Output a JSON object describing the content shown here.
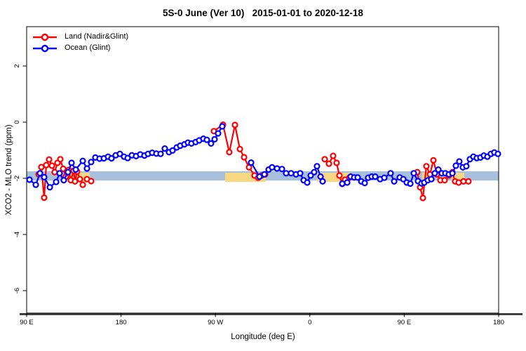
{
  "title": "5S-0 June (Ver 10)   2015-01-01 to 2020-12-18",
  "axes": {
    "x_label": "Longitude (deg E)",
    "y_label": "XCO2 - MLO trend (ppm)"
  },
  "legend": {
    "items": [
      {
        "label": "Land (Nadir&Glint)",
        "color": "#ff0000"
      },
      {
        "label": "Ocean (Glint)",
        "color": "#0000ff"
      }
    ]
  },
  "chart_data": {
    "type": "line",
    "title": "5S-0 June (Ver 10)   2015-01-01 to 2020-12-18",
    "xlabel": "Longitude (deg E)",
    "ylabel": "XCO2 - MLO trend (ppm)",
    "xlim": [
      90,
      540
    ],
    "ylim": [
      -6.8,
      3.4
    ],
    "grid": false,
    "legend_position": "top-left-inside",
    "x_ticks": [
      {
        "value": 90,
        "label": "90 E"
      },
      {
        "value": 180,
        "label": "180"
      },
      {
        "value": 270,
        "label": "90 W"
      },
      {
        "value": 360,
        "label": "0"
      },
      {
        "value": 450,
        "label": "90 E"
      },
      {
        "value": 540,
        "label": "180"
      }
    ],
    "y_ticks": [
      {
        "value": 2,
        "label": "2"
      },
      {
        "value": 0,
        "label": "0"
      },
      {
        "value": -2,
        "label": "-2"
      },
      {
        "value": -4,
        "label": "-4"
      },
      {
        "value": -6,
        "label": "-6"
      }
    ],
    "bands": [
      {
        "name": "ocean-reference-band",
        "color": "#a9c0dd",
        "x_segments": [
          [
            90,
            540
          ]
        ],
        "y": [
          -2.08,
          -1.75
        ]
      },
      {
        "name": "land-reference-band",
        "color": "#f6d884",
        "x_segments": [
          [
            128.8,
            150.2
          ],
          [
            279.2,
            318.0
          ],
          [
            366.8,
            398.3
          ],
          [
            467.1,
            478.5
          ],
          [
            495.2,
            507.2
          ]
        ],
        "y": [
          -2.13,
          -1.8
        ]
      }
    ],
    "series": [
      {
        "name": "Land (Nadir&Glint)",
        "color": "#ff0000",
        "segments": [
          [
            [
              101.4,
              -1.86
            ],
            [
              104.0,
              -1.6
            ],
            [
              106.7,
              -2.69
            ],
            [
              108.7,
              -1.53
            ],
            [
              111.4,
              -1.33
            ],
            [
              114.1,
              -1.55
            ],
            [
              116.7,
              -1.78
            ],
            [
              119.4,
              -1.45
            ],
            [
              122.1,
              -1.32
            ],
            [
              124.8,
              -1.66
            ],
            [
              127.4,
              -1.94
            ],
            [
              130.1,
              -1.7
            ],
            [
              132.1,
              -2.07
            ],
            [
              134.8,
              -1.73
            ],
            [
              136.1,
              -2.11
            ],
            [
              138.1,
              -1.76
            ],
            [
              140.8,
              -2.03
            ],
            [
              143.5,
              -2.23
            ]
          ],
          [
            [
              147.5,
              -2.03
            ]
          ],
          [
            [
              151.5,
              -2.1
            ]
          ],
          [
            [
              268.5,
              -0.32
            ],
            [
              277.2,
              -0.09
            ],
            [
              283.2,
              -1.07
            ],
            [
              288.6,
              -0.1
            ],
            [
              293.3,
              -0.96
            ],
            [
              297.3,
              -1.25
            ],
            [
              302.0,
              -1.61
            ],
            [
              307.3,
              -1.9
            ],
            [
              310.7,
              -1.98
            ],
            [
              314.0,
              -1.9
            ],
            [
              317.4,
              -1.86
            ]
          ],
          [
            [
              374.2,
              -1.32
            ],
            [
              378.2,
              -1.48
            ],
            [
              382.2,
              -1.2
            ],
            [
              385.5,
              -1.45
            ],
            [
              388.2,
              -1.9
            ],
            [
              390.9,
              -2.2
            ],
            [
              393.6,
              -2.05
            ],
            [
              397.6,
              -1.98
            ]
          ],
          [
            [
              462.4,
              -1.78
            ],
            [
              465.1,
              -2.32
            ],
            [
              467.8,
              -2.7
            ],
            [
              471.1,
              -1.57
            ],
            [
              474.5,
              -1.86
            ],
            [
              477.8,
              -1.36
            ],
            [
              481.1,
              -1.86
            ],
            [
              484.5,
              -2.07
            ],
            [
              488.5,
              -2.07
            ],
            [
              492.5,
              -1.9
            ],
            [
              495.9,
              -1.78
            ],
            [
              498.5,
              -2.11
            ],
            [
              501.9,
              -2.15
            ]
          ],
          [
            [
              506.5,
              -2.11
            ]
          ],
          [
            [
              511.2,
              -2.11
            ]
          ]
        ]
      },
      {
        "name": "Ocean (Glint)",
        "color": "#0000ff",
        "segments": [
          [
            [
              92.7,
              -2.05
            ],
            [
              98.7,
              -2.23
            ],
            [
              102.7,
              -1.82
            ],
            [
              106.7,
              -1.96
            ],
            [
              112.1,
              -2.32
            ],
            [
              118.1,
              -2.13
            ],
            [
              121.4,
              -1.82
            ],
            [
              125.4,
              -2.07
            ],
            [
              129.4,
              -1.78
            ],
            [
              132.8,
              -1.45
            ],
            [
              136.8,
              -1.69
            ],
            [
              143.5,
              -1.38
            ],
            [
              147.5,
              -1.65
            ],
            [
              151.5,
              -1.42
            ],
            [
              155.5,
              -1.26
            ],
            [
              159.5,
              -1.3
            ],
            [
              163.6,
              -1.29
            ],
            [
              167.6,
              -1.23
            ],
            [
              170.9,
              -1.29
            ],
            [
              174.9,
              -1.18
            ],
            [
              178.9,
              -1.13
            ],
            [
              182.9,
              -1.23
            ],
            [
              186.3,
              -1.28
            ],
            [
              190.3,
              -1.18
            ],
            [
              194.3,
              -1.21
            ],
            [
              198.3,
              -1.15
            ],
            [
              202.3,
              -1.19
            ],
            [
              205.7,
              -1.13
            ],
            [
              209.7,
              -1.09
            ],
            [
              213.7,
              -1.12
            ],
            [
              217.7,
              -1.13
            ],
            [
              221.7,
              -0.94
            ],
            [
              225.7,
              -1.07
            ],
            [
              229.1,
              -1.01
            ],
            [
              233.1,
              -0.9
            ],
            [
              236.4,
              -0.84
            ],
            [
              240.4,
              -0.79
            ],
            [
              243.8,
              -0.73
            ],
            [
              247.1,
              -0.76
            ],
            [
              251.1,
              -0.71
            ],
            [
              254.5,
              -0.65
            ],
            [
              258.5,
              -0.59
            ],
            [
              261.8,
              -0.63
            ],
            [
              265.8,
              -0.76
            ],
            [
              269.2,
              -0.61
            ],
            [
              272.5,
              -0.4
            ],
            [
              276.5,
              -0.15
            ]
          ],
          [
            [
              304.0,
              -1.44
            ],
            [
              312.0,
              -1.94
            ],
            [
              316.7,
              -1.86
            ],
            [
              320.7,
              -1.69
            ],
            [
              324.0,
              -1.61
            ],
            [
              328.7,
              -1.65
            ],
            [
              333.4,
              -1.67
            ],
            [
              337.4,
              -1.82
            ],
            [
              342.1,
              -1.82
            ],
            [
              346.8,
              -1.86
            ],
            [
              350.8,
              -1.82
            ],
            [
              354.1,
              -2.07
            ],
            [
              357.5,
              -2.15
            ],
            [
              360.8,
              -1.9
            ],
            [
              364.1,
              -1.78
            ],
            [
              366.8,
              -1.57
            ],
            [
              370.2,
              -1.94
            ],
            [
              372.2,
              -2.11
            ]
          ],
          [
            [
              390.9,
              -2.19
            ],
            [
              395.6,
              -2.15
            ],
            [
              398.9,
              -1.94
            ],
            [
              402.3,
              -1.97
            ],
            [
              405.6,
              -1.97
            ],
            [
              409.0,
              -2.11
            ],
            [
              412.3,
              -2.17
            ],
            [
              415.6,
              -1.98
            ],
            [
              419.0,
              -1.94
            ],
            [
              422.3,
              -1.94
            ],
            [
              427.0,
              -2.03
            ],
            [
              431.0,
              -1.98
            ],
            [
              437.0,
              -1.82
            ],
            [
              440.4,
              -2.11
            ],
            [
              445.7,
              -1.97
            ],
            [
              449.1,
              -2.03
            ],
            [
              452.4,
              -2.15
            ],
            [
              455.8,
              -2.19
            ],
            [
              459.1,
              -1.82
            ],
            [
              463.1,
              -2.1
            ],
            [
              466.4,
              -2.18
            ],
            [
              469.1,
              -2.15
            ],
            [
              472.5,
              -2.07
            ],
            [
              475.8,
              -2.03
            ],
            [
              479.1,
              -1.82
            ],
            [
              482.5,
              -1.69
            ],
            [
              485.8,
              -1.82
            ],
            [
              489.2,
              -1.82
            ],
            [
              492.5,
              -1.86
            ],
            [
              495.9,
              -1.82
            ],
            [
              499.2,
              -1.55
            ],
            [
              502.5,
              -1.4
            ],
            [
              505.9,
              -1.61
            ],
            [
              509.2,
              -1.57
            ],
            [
              512.6,
              -1.32
            ],
            [
              515.9,
              -1.23
            ],
            [
              519.2,
              -1.28
            ],
            [
              522.6,
              -1.26
            ],
            [
              525.9,
              -1.19
            ],
            [
              529.3,
              -1.23
            ],
            [
              532.6,
              -1.13
            ],
            [
              535.9,
              -1.08
            ],
            [
              539.3,
              -1.13
            ]
          ]
        ]
      }
    ]
  }
}
